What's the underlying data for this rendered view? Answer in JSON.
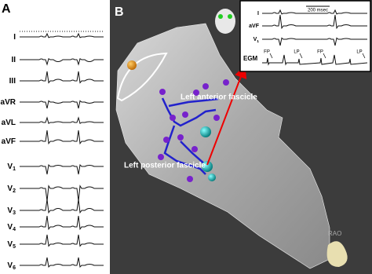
{
  "panel_a": {
    "label": "A",
    "leads": [
      {
        "name": "I"
      },
      {
        "name": "II"
      },
      {
        "name": "III"
      },
      {
        "name": "aVR"
      },
      {
        "name": "aVL"
      },
      {
        "name": "aVF"
      },
      {
        "name": "V",
        "subscript": "1"
      },
      {
        "name": "V",
        "subscript": "2"
      },
      {
        "name": "V",
        "subscript": "3"
      },
      {
        "name": "V",
        "subscript": "4"
      },
      {
        "name": "V",
        "subscript": "5"
      },
      {
        "name": "V",
        "subscript": "6"
      }
    ]
  },
  "panel_b": {
    "label": "B",
    "annotations": [
      "Left anterior fascicle",
      "Left posterior fascicle"
    ],
    "view": "RAO",
    "inset": {
      "leads": [
        {
          "name": "I"
        },
        {
          "name": "aVF"
        },
        {
          "name": "V",
          "subscript": "1"
        }
      ],
      "scale": "200 msec",
      "egm_label": "EGM",
      "potentials": [
        "FP",
        "LP",
        "FP",
        "LP"
      ]
    }
  }
}
